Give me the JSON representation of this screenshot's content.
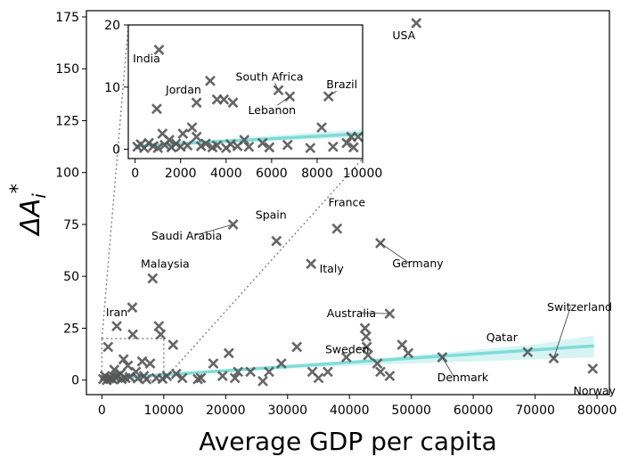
{
  "chart_data": {
    "type": "scatter",
    "xlabel": "Average GDP per capita",
    "ylabel_main": "ΔA",
    "ylabel_sub": "i",
    "ylabel_sup": "*",
    "xlim": [
      -2500,
      82000
    ],
    "ylim": [
      -7,
      178
    ],
    "xticks": [
      0,
      10000,
      20000,
      30000,
      40000,
      50000,
      60000,
      70000,
      80000
    ],
    "yticks": [
      0,
      25,
      50,
      75,
      100,
      125,
      150,
      175
    ],
    "colors": {
      "marker": "#555555",
      "fit": "#7fdcd8",
      "band": "#c6efef"
    },
    "fit": {
      "x0": 0,
      "y0": 0.5,
      "x1": 79500,
      "y1": 16.5
    },
    "band": {
      "x": [
        0,
        10000,
        20000,
        30000,
        40000,
        50000,
        60000,
        70000,
        79500
      ],
      "lower": [
        0.4,
        2.2,
        3.9,
        5.5,
        6.8,
        8.0,
        9.0,
        10.0,
        11.0
      ],
      "upper": [
        0.6,
        2.5,
        4.5,
        6.8,
        9.2,
        11.8,
        14.5,
        17.2,
        21.5
      ]
    },
    "points": [
      {
        "x": 50800,
        "y": 172,
        "label": "USA"
      },
      {
        "x": 21200,
        "y": 75,
        "label": "Saudi Arabia"
      },
      {
        "x": 8200,
        "y": 49,
        "label": "Malaysia"
      },
      {
        "x": 38000,
        "y": 73,
        "label": "France"
      },
      {
        "x": 45000,
        "y": 66,
        "label": "Germany"
      },
      {
        "x": 28200,
        "y": 67,
        "label": "Spain"
      },
      {
        "x": 33800,
        "y": 56,
        "label": "Italy"
      },
      {
        "x": 46500,
        "y": 32,
        "label": "Australia"
      },
      {
        "x": 42800,
        "y": 16,
        "label": "Sweden"
      },
      {
        "x": 68800,
        "y": 13.5,
        "label": "Qatar"
      },
      {
        "x": 73000,
        "y": 10.5,
        "label": "Switzerland"
      },
      {
        "x": 55000,
        "y": 11,
        "label": "Denmark"
      },
      {
        "x": 79300,
        "y": 5.5,
        "label": "Norway"
      },
      {
        "x": 2400,
        "y": 26,
        "label": "Iran"
      },
      {
        "x": 4900,
        "y": 35
      },
      {
        "x": 5000,
        "y": 22
      },
      {
        "x": 9200,
        "y": 26
      },
      {
        "x": 9500,
        "y": 22
      },
      {
        "x": 11500,
        "y": 17
      },
      {
        "x": 3500,
        "y": 10
      },
      {
        "x": 4200,
        "y": 7
      },
      {
        "x": 6500,
        "y": 9
      },
      {
        "x": 7800,
        "y": 8
      },
      {
        "x": 1000,
        "y": 16
      },
      {
        "x": 2000,
        "y": 5
      },
      {
        "x": 3000,
        "y": 3
      },
      {
        "x": 5500,
        "y": 4
      },
      {
        "x": 6800,
        "y": 2
      },
      {
        "x": 8800,
        "y": 1
      },
      {
        "x": 10500,
        "y": 2
      },
      {
        "x": 12000,
        "y": 3
      },
      {
        "x": 13000,
        "y": 1
      },
      {
        "x": 15500,
        "y": 0.5
      },
      {
        "x": 16000,
        "y": 1
      },
      {
        "x": 18000,
        "y": 8
      },
      {
        "x": 19500,
        "y": 2
      },
      {
        "x": 20500,
        "y": 13
      },
      {
        "x": 21500,
        "y": 1
      },
      {
        "x": 22000,
        "y": 4
      },
      {
        "x": 24000,
        "y": 4
      },
      {
        "x": 26000,
        "y": -0.5
      },
      {
        "x": 27000,
        "y": 4
      },
      {
        "x": 29000,
        "y": 8
      },
      {
        "x": 31500,
        "y": 16
      },
      {
        "x": 34000,
        "y": 4
      },
      {
        "x": 35000,
        "y": 1
      },
      {
        "x": 36500,
        "y": 4
      },
      {
        "x": 39500,
        "y": 11
      },
      {
        "x": 42500,
        "y": 25
      },
      {
        "x": 42700,
        "y": 21
      },
      {
        "x": 43000,
        "y": 12
      },
      {
        "x": 44500,
        "y": 8
      },
      {
        "x": 45000,
        "y": 4
      },
      {
        "x": 46500,
        "y": 2
      },
      {
        "x": 48500,
        "y": 17
      },
      {
        "x": 49500,
        "y": 13
      },
      {
        "x": 500,
        "y": 2
      },
      {
        "x": 1500,
        "y": 1
      },
      {
        "x": 2500,
        "y": 2
      },
      {
        "x": 3800,
        "y": 1
      },
      {
        "x": 4500,
        "y": 1.5
      },
      {
        "x": 200,
        "y": 0.5
      },
      {
        "x": 800,
        "y": 0
      },
      {
        "x": 1200,
        "y": 0.8
      },
      {
        "x": 1800,
        "y": 0.3
      },
      {
        "x": 2200,
        "y": 1.2
      },
      {
        "x": 3200,
        "y": 0.5
      },
      {
        "x": 5800,
        "y": 0.8
      },
      {
        "x": 7200,
        "y": 0.4
      },
      {
        "x": 9800,
        "y": 0.6
      }
    ],
    "inset": {
      "xlim": [
        -300,
        10000
      ],
      "ylim": [
        -1.5,
        20
      ],
      "xticks": [
        0,
        2000,
        4000,
        6000,
        8000,
        10000
      ],
      "yticks": [
        0,
        10,
        20
      ],
      "zoom_box": {
        "x0": 0,
        "x1": 10000,
        "y0": 0,
        "y1": 20
      },
      "fit": {
        "x0": 0,
        "y0": 0.5,
        "x1": 10000,
        "y1": 2.5
      },
      "points": [
        {
          "x": 1050,
          "y": 16,
          "label": "India"
        },
        {
          "x": 3300,
          "y": 11,
          "label": "Jordan"
        },
        {
          "x": 6300,
          "y": 9.5,
          "label": "South Africa"
        },
        {
          "x": 6800,
          "y": 8.5,
          "label": "Lebanon"
        },
        {
          "x": 8500,
          "y": 8.5,
          "label": "Brazil"
        },
        {
          "x": 3600,
          "y": 8
        },
        {
          "x": 3900,
          "y": 8
        },
        {
          "x": 4300,
          "y": 7.5
        },
        {
          "x": 2700,
          "y": 7.5
        },
        {
          "x": 950,
          "y": 6.5
        },
        {
          "x": 8200,
          "y": 3.5
        },
        {
          "x": 2500,
          "y": 3.5
        },
        {
          "x": 1200,
          "y": 2.5
        },
        {
          "x": 2100,
          "y": 2.5
        },
        {
          "x": 2700,
          "y": 2
        },
        {
          "x": 1500,
          "y": 1.5
        },
        {
          "x": 9500,
          "y": 2
        },
        {
          "x": 9800,
          "y": 2
        },
        {
          "x": 9300,
          "y": 1
        },
        {
          "x": 4800,
          "y": 1.5
        },
        {
          "x": 5600,
          "y": 1
        },
        {
          "x": 2900,
          "y": 0.5
        },
        {
          "x": 3400,
          "y": 0.3
        },
        {
          "x": 4000,
          "y": 0.2
        },
        {
          "x": 4500,
          "y": 0.5
        },
        {
          "x": 100,
          "y": 0.4
        },
        {
          "x": 250,
          "y": 0.8
        },
        {
          "x": 400,
          "y": 0.2
        },
        {
          "x": 600,
          "y": 1
        },
        {
          "x": 800,
          "y": 0.5
        },
        {
          "x": 1000,
          "y": 0.2
        },
        {
          "x": 1300,
          "y": 0.7
        },
        {
          "x": 1600,
          "y": 0.3
        },
        {
          "x": 1800,
          "y": 0.9
        },
        {
          "x": 2000,
          "y": 0.4
        },
        {
          "x": 2300,
          "y": 0.6
        },
        {
          "x": 3100,
          "y": 0.9
        },
        {
          "x": 3600,
          "y": 0.6
        },
        {
          "x": 4200,
          "y": 0.8
        },
        {
          "x": 5000,
          "y": 0.4
        },
        {
          "x": 5900,
          "y": 0.3
        },
        {
          "x": 6700,
          "y": 0.7
        },
        {
          "x": 7700,
          "y": 0.2
        },
        {
          "x": 8700,
          "y": 0.4
        },
        {
          "x": 9600,
          "y": 0.3
        }
      ]
    }
  }
}
